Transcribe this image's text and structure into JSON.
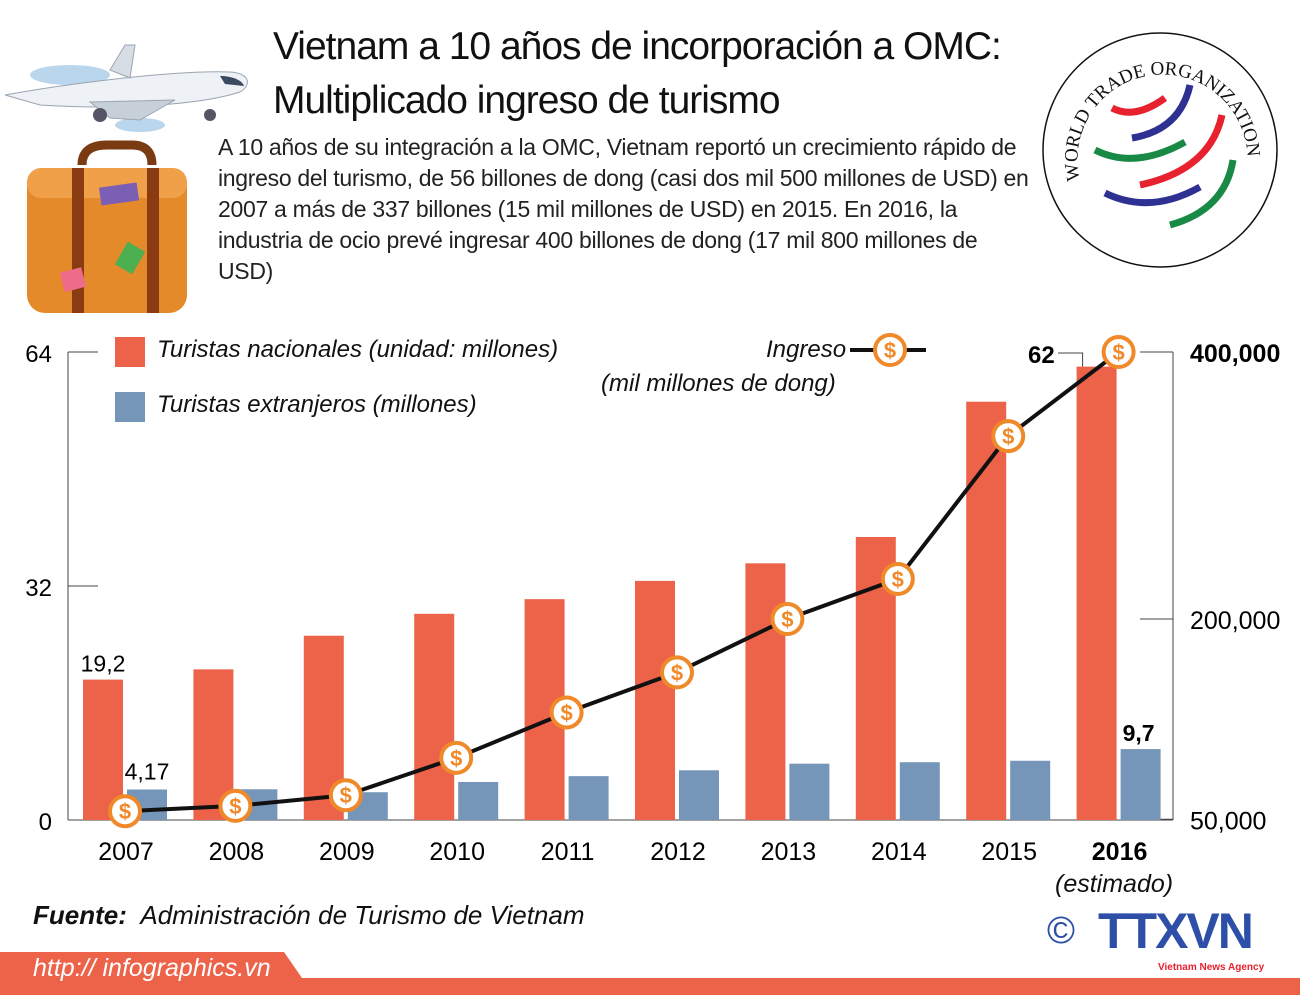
{
  "title_line1": "Vietnam a 10 años de incorporación a OMC:",
  "title_line2": "Multiplicado ingreso de turismo",
  "intro": "A 10 años de su integración a la OMC, Vietnam reportó un crecimiento rápido de ingreso del turismo, de 56 billones de dong (casi dos mil 500 millones de USD) en 2007 a más de 337 billones (15 mil millones de USD) en 2015. En 2016, la industria de ocio prevé ingresar 400 billones de dong (17 mil 800 millones de USD)",
  "logo_wto": "WORLD TRADE ORGANIZATION",
  "logo_agency": "TTXVN",
  "logo_agency_sub": "Vietnam News Agency",
  "copyright": "©",
  "source_label": "Fuente:",
  "source_text": "Administración de Turismo de Vietnam",
  "url": "http:// infographics.vn",
  "colors": {
    "domestic": "#ec634a",
    "foreign": "#7596b8",
    "income_marker": "#f0892a",
    "line": "#111111",
    "footer": "#ec634a"
  },
  "chart_data": {
    "type": "bar",
    "categories": [
      "2007",
      "2008",
      "2009",
      "2010",
      "2011",
      "2012",
      "2013",
      "2014",
      "2015",
      "2016"
    ],
    "category_note": "(estimado)",
    "series": [
      {
        "name": "Turistas nacionales (unidad: millones)",
        "type": "bar",
        "axis": "left",
        "values": [
          19.2,
          20.6,
          25.2,
          28.2,
          30.2,
          32.7,
          35.1,
          38.7,
          57.2,
          62
        ]
      },
      {
        "name": "Turistas extranjeros (millones)",
        "type": "bar",
        "axis": "left",
        "values": [
          4.17,
          4.2,
          3.8,
          5.2,
          6.0,
          6.8,
          7.7,
          7.9,
          8.1,
          9.7
        ]
      },
      {
        "name": "Ingreso",
        "name_line2": "(mil millones de dong)",
        "type": "line",
        "axis": "right",
        "marker": "dollar-coin",
        "values": [
          56000,
          60000,
          68000,
          96000,
          130000,
          160000,
          200000,
          230000,
          337000,
          400000
        ]
      }
    ],
    "left_axis": {
      "ticks": [
        "0",
        "32",
        "64"
      ],
      "tick_values": [
        0,
        32,
        64
      ],
      "ylim": [
        0,
        64
      ]
    },
    "right_axis": {
      "ticks": [
        "50,000",
        "200,000",
        "400,000"
      ],
      "tick_values": [
        50000,
        200000,
        400000
      ]
    },
    "data_labels": {
      "domestic_2007": "19,2",
      "foreign_2007": "4,17",
      "domestic_2016": "62",
      "foreign_2016": "9,7"
    },
    "grid": false,
    "legend": "top-left"
  }
}
